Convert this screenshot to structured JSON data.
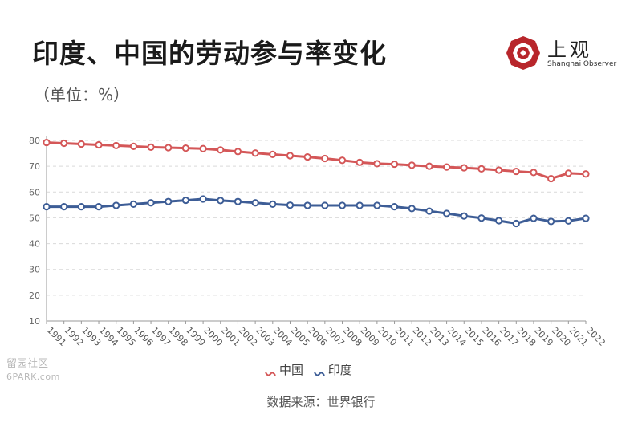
{
  "title": "印度、中国的劳动参与率变化",
  "unit_label": "（单位：%）",
  "logo": {
    "cn": "上观",
    "en": "Shanghai Observer"
  },
  "source": "数据来源：世界银行",
  "watermark": {
    "cn": "留园社区",
    "en": "6PARK.com"
  },
  "colors": {
    "china": "#d45758",
    "india": "#3d5d96",
    "grid": "#d9d9d9",
    "axis": "#999999",
    "logo_red": "#b8262b"
  },
  "chart_data": {
    "type": "line",
    "title": "印度、中国的劳动参与率变化",
    "ylabel": "（单位：%）",
    "xlabel": "",
    "ylim": [
      10,
      80
    ],
    "yticks": [
      10,
      20,
      30,
      40,
      50,
      60,
      70,
      80
    ],
    "grid": true,
    "legend": "bottom",
    "categories": [
      "1991",
      "1992",
      "1993",
      "1994",
      "1995",
      "1996",
      "1997",
      "1998",
      "1999",
      "2000",
      "2001",
      "2002",
      "2003",
      "2004",
      "2005",
      "2006",
      "2007",
      "2008",
      "2009",
      "2010",
      "2011",
      "2012",
      "2013",
      "2014",
      "2015",
      "2016",
      "2017",
      "2018",
      "2019",
      "2020",
      "2021",
      "2022"
    ],
    "series": [
      {
        "name": "中国",
        "color": "#d45758",
        "values": [
          79.2,
          78.9,
          78.6,
          78.3,
          78.0,
          77.7,
          77.4,
          77.2,
          77.0,
          76.8,
          76.3,
          75.7,
          75.1,
          74.6,
          74.1,
          73.6,
          73.0,
          72.3,
          71.5,
          71.0,
          70.8,
          70.4,
          70.0,
          69.7,
          69.4,
          69.0,
          68.5,
          68.0,
          67.6,
          65.2,
          67.3,
          67.0
        ]
      },
      {
        "name": "印度",
        "color": "#3d5d96",
        "values": [
          54.3,
          54.3,
          54.3,
          54.3,
          54.8,
          55.3,
          55.8,
          56.3,
          56.8,
          57.3,
          56.7,
          56.3,
          55.8,
          55.3,
          54.9,
          54.8,
          54.8,
          54.8,
          54.8,
          54.8,
          54.3,
          53.6,
          52.6,
          51.7,
          50.7,
          49.9,
          48.9,
          47.8,
          49.8,
          48.6,
          48.8,
          49.8
        ]
      }
    ]
  }
}
